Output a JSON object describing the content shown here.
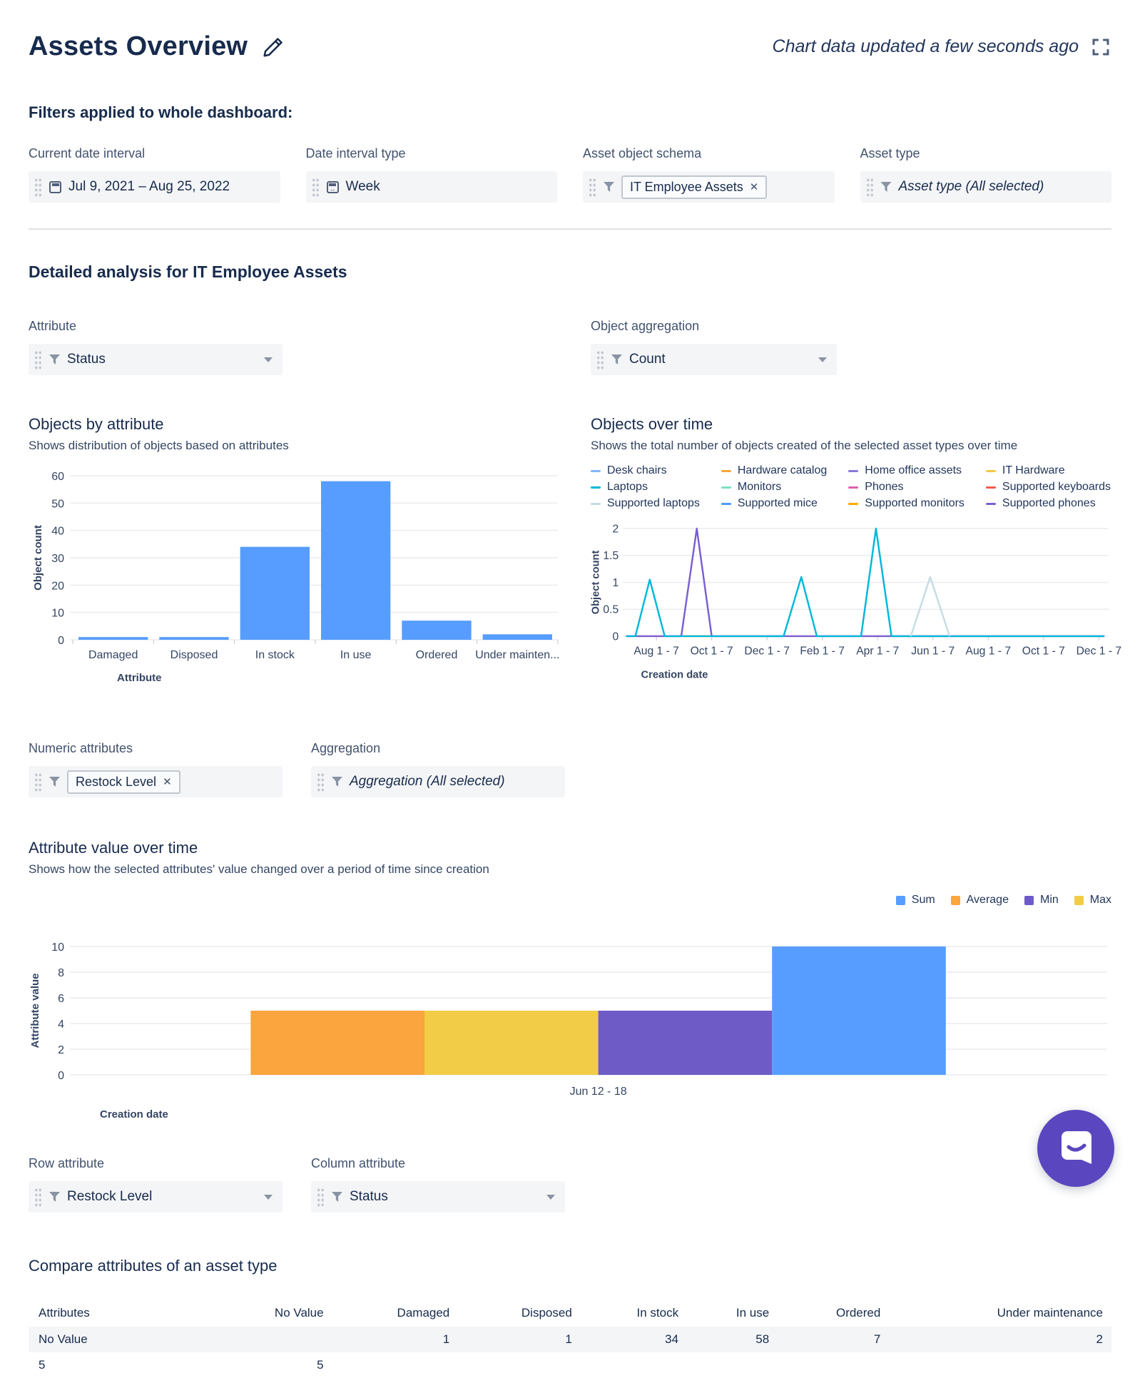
{
  "header": {
    "title": "Assets Overview",
    "updated": "Chart data updated a few seconds ago"
  },
  "icons": {
    "remove": "✕"
  },
  "filters_section": {
    "heading": "Filters applied to whole dashboard:",
    "filters": [
      {
        "label": "Current date interval",
        "icon": "calendar-icon",
        "value": "Jul 9, 2021  –  Aug 25, 2022"
      },
      {
        "label": "Date interval type",
        "icon": "calendar-range-icon",
        "value": "Week"
      },
      {
        "label": "Asset object schema",
        "icon": "filter-icon",
        "chip": "IT Employee Assets"
      },
      {
        "label": "Asset type",
        "icon": "filter-icon",
        "value": "Asset type (All selected)"
      }
    ]
  },
  "analysis": {
    "heading": "Detailed analysis for IT Employee Assets"
  },
  "controls": {
    "attribute": {
      "label": "Attribute",
      "value": "Status"
    },
    "aggregation": {
      "label": "Object aggregation",
      "value": "Count"
    },
    "numeric_attributes": {
      "label": "Numeric attributes",
      "chip": "Restock Level"
    },
    "agg2": {
      "label": "Aggregation",
      "value": "Aggregation (All selected)"
    },
    "row_attribute": {
      "label": "Row attribute",
      "value": "Restock Level"
    },
    "column_attribute": {
      "label": "Column attribute",
      "value": "Status"
    }
  },
  "chart_data": [
    {
      "id": "objects_by_attribute",
      "type": "bar",
      "title": "Objects by attribute",
      "subtitle": "Shows distribution of objects based on attributes",
      "categories": [
        "Damaged",
        "Disposed",
        "In stock",
        "In use",
        "Ordered",
        "Under mainten..."
      ],
      "values": [
        1,
        1,
        34,
        58,
        7,
        2
      ],
      "bar_color": "#579DFF",
      "xlabel": "Attribute",
      "ylabel": "Object count",
      "ylim": [
        0,
        60
      ],
      "yticks": [
        0,
        10,
        20,
        30,
        40,
        50,
        60
      ],
      "grid": true
    },
    {
      "id": "objects_over_time",
      "type": "line",
      "title": "Objects over time",
      "subtitle": "Shows the total number of objects created of the selected asset types over time",
      "xlabel": "Creation date",
      "ylabel": "Object count",
      "ylim": [
        0,
        2
      ],
      "yticks": [
        0,
        0.5,
        1,
        1.5,
        2
      ],
      "xticks": [
        "Aug 1 - 7",
        "Oct 1 - 7",
        "Dec 1 - 7",
        "Feb 1 - 7",
        "Apr 1 - 7",
        "Jun 1 - 7",
        "Aug 1 - 7",
        "Oct 1 - 7",
        "Dec 1 - 7"
      ],
      "legend_position": "top",
      "legend": [
        {
          "name": "Desk chairs",
          "color": "#85B8F5"
        },
        {
          "name": "Hardware catalog",
          "color": "#FAA53D"
        },
        {
          "name": "Home office assets",
          "color": "#8777D9"
        },
        {
          "name": "IT Hardware",
          "color": "#F0C945"
        },
        {
          "name": "Laptops",
          "color": "#00B8D9"
        },
        {
          "name": "Monitors",
          "color": "#79E2C0"
        },
        {
          "name": "Phones",
          "color": "#DA62AC"
        },
        {
          "name": "Supported keyboards",
          "color": "#F2594B"
        },
        {
          "name": "Supported laptops",
          "color": "#C6DCE3"
        },
        {
          "name": "Supported mice",
          "color": "#4C9AFF"
        },
        {
          "name": "Supported monitors",
          "color": "#FFAB00"
        },
        {
          "name": "Supported phones",
          "color": "#7A5FD0"
        }
      ],
      "series": [
        {
          "name": "Supported phones",
          "color": "#7A5FD0",
          "points": [
            [
              -0.55,
              0
            ],
            [
              0.45,
              0
            ],
            [
              0.73,
              2
            ],
            [
              1.0,
              0
            ],
            [
              8.1,
              0
            ]
          ]
        },
        {
          "name": "Supported monitors",
          "color": "#FFAB00",
          "points": [
            [
              0.5,
              0
            ],
            [
              0.95,
              0
            ]
          ]
        },
        {
          "name": "Laptops",
          "color": "#00B8D9",
          "points": [
            [
              -0.55,
              0
            ],
            [
              -0.38,
              0
            ],
            [
              -0.12,
              1.05
            ],
            [
              0.15,
              0
            ],
            [
              2.3,
              0
            ],
            [
              2.62,
              1.1
            ],
            [
              2.9,
              0
            ],
            [
              3.7,
              0
            ],
            [
              3.97,
              2
            ],
            [
              4.25,
              0
            ],
            [
              8.1,
              0
            ]
          ]
        },
        {
          "name": "Supported laptops",
          "color": "#C6DCE3",
          "points": [
            [
              4.6,
              0
            ],
            [
              4.95,
              1.1
            ],
            [
              5.3,
              0
            ]
          ]
        }
      ]
    },
    {
      "id": "attribute_value_over_time",
      "type": "bar",
      "title": "Attribute value over time",
      "subtitle": "Shows how the selected attributes' value changed over a period of time since creation",
      "xlabel": "Creation date",
      "ylabel": "Attribute value",
      "ylim": [
        0,
        10
      ],
      "yticks": [
        0,
        2,
        4,
        6,
        8,
        10
      ],
      "categories": [
        "Jun 12 - 18"
      ],
      "series": [
        {
          "name": "Sum",
          "color": "#579DFF",
          "values": [
            10
          ]
        },
        {
          "name": "Average",
          "color": "#FAA53D",
          "values": [
            5
          ]
        },
        {
          "name": "Min",
          "color": "#6E5BC6",
          "values": [
            5
          ]
        },
        {
          "name": "Max",
          "color": "#F2CC46",
          "values": [
            5
          ]
        }
      ],
      "bar_order": [
        "Average",
        "Max",
        "Min",
        "Sum"
      ],
      "legend_order": [
        "Sum",
        "Average",
        "Min",
        "Max"
      ],
      "legend_position": "top-right"
    }
  ],
  "table": {
    "heading": "Compare attributes of an asset type",
    "columns": [
      "Attributes",
      "No Value",
      "Damaged",
      "Disposed",
      "In stock",
      "In use",
      "Ordered",
      "Under maintenance"
    ],
    "rows": [
      [
        "No Value",
        "",
        "1",
        "1",
        "34",
        "58",
        "7",
        "2"
      ],
      [
        "5",
        "5",
        "",
        "",
        "",
        "",
        "",
        ""
      ]
    ]
  }
}
